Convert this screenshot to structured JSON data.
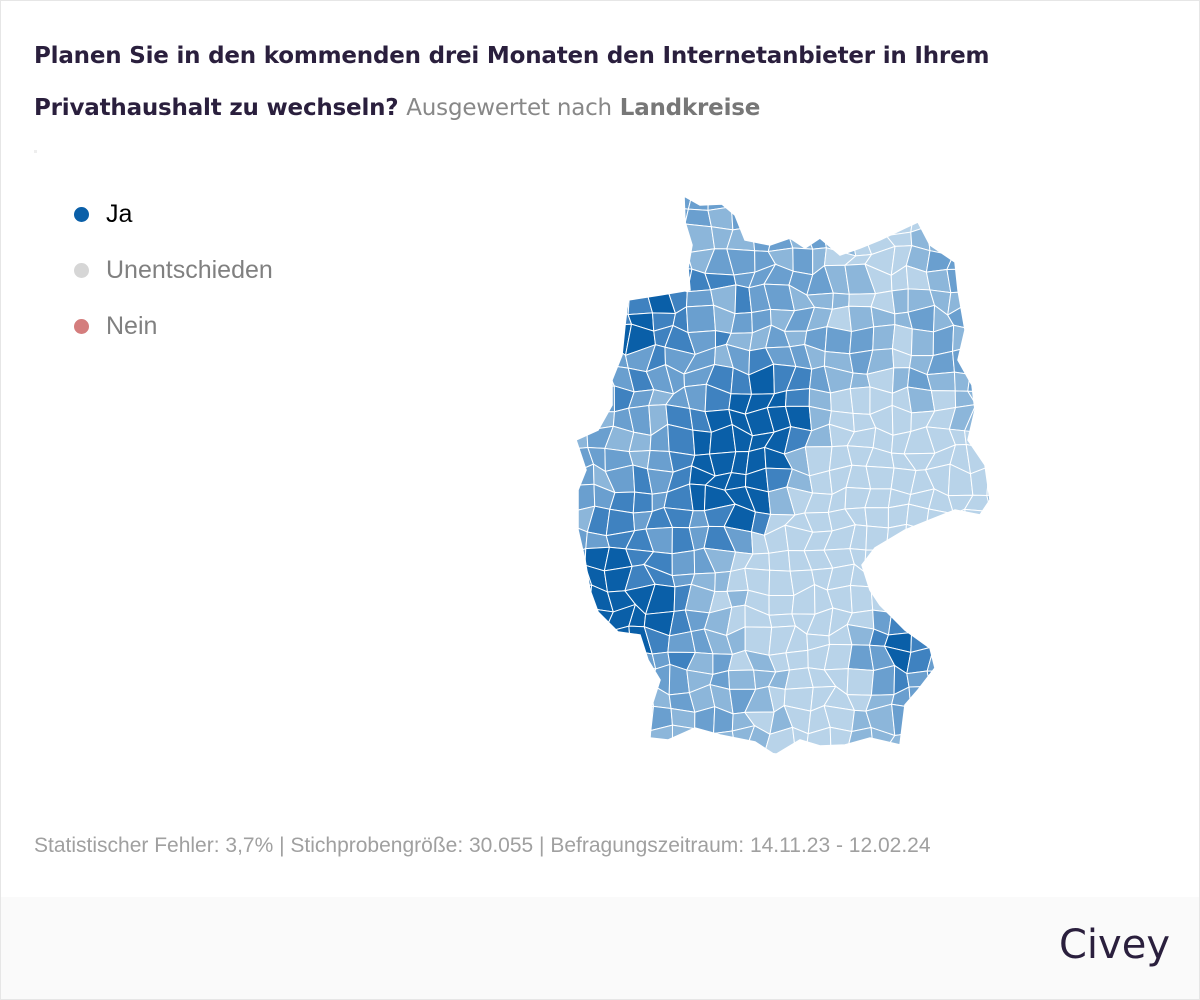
{
  "title": {
    "question": "Planen Sie in den kommenden drei Monaten den Internetanbieter in Ihrem Privathaushalt zu wechseln?",
    "evaluated_prefix": "Ausgewertet nach",
    "evaluated_by": "Landkreise"
  },
  "legend": [
    {
      "label": "Ja",
      "color": "#0a5fa8",
      "active": true
    },
    {
      "label": "Unentschieden",
      "color": "#d6d6d6",
      "active": false
    },
    {
      "label": "Nein",
      "color": "#d47d7d",
      "active": false
    }
  ],
  "map": {
    "region": "Deutschland",
    "unit": "Landkreise",
    "shown_answer": "Ja",
    "color_scale": [
      "#b8d3e9",
      "#8cb6da",
      "#6a9fcf",
      "#3f82c0",
      "#0a5fa8"
    ]
  },
  "footer": {
    "text": "Statistischer Fehler: 3,7% | Stichprobengröße: 30.055 | Befragungszeitraum: 14.11.23 - 12.02.24"
  },
  "brand": {
    "logo": "Civey"
  }
}
